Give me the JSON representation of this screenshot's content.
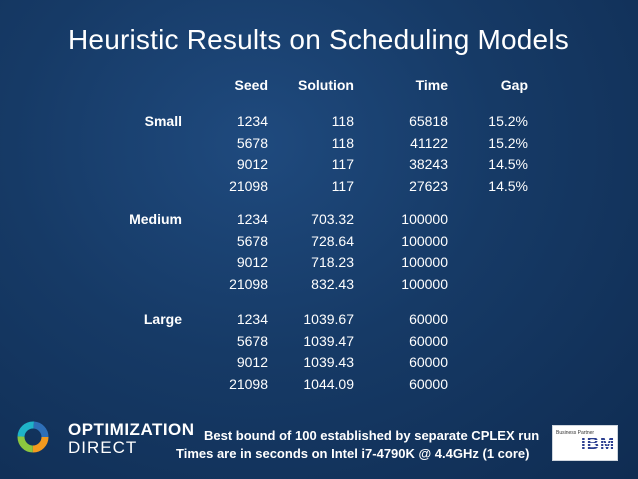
{
  "title": "Heuristic Results on Scheduling Models",
  "table": {
    "headers": [
      "Seed",
      "Solution",
      "Time",
      "Gap"
    ],
    "groups": [
      {
        "label": "Small",
        "rows": [
          {
            "seed": "1234",
            "solution": "118",
            "time": "65818",
            "gap": "15.2%"
          },
          {
            "seed": "5678",
            "solution": "118",
            "time": "41122",
            "gap": "15.2%"
          },
          {
            "seed": "9012",
            "solution": "117",
            "time": "38243",
            "gap": "14.5%"
          },
          {
            "seed": "21098",
            "solution": "117",
            "time": "27623",
            "gap": "14.5%"
          }
        ]
      },
      {
        "label": "Medium",
        "rows": [
          {
            "seed": "1234",
            "solution": "703.32",
            "time": "100000",
            "gap": ""
          },
          {
            "seed": "5678",
            "solution": "728.64",
            "time": "100000",
            "gap": ""
          },
          {
            "seed": "9012",
            "solution": "718.23",
            "time": "100000",
            "gap": ""
          },
          {
            "seed": "21098",
            "solution": "832.43",
            "time": "100000",
            "gap": ""
          }
        ]
      },
      {
        "label": "Large",
        "rows": [
          {
            "seed": "1234",
            "solution": "1039.67",
            "time": "60000",
            "gap": ""
          },
          {
            "seed": "5678",
            "solution": "1039.47",
            "time": "60000",
            "gap": ""
          },
          {
            "seed": "9012",
            "solution": "1039.43",
            "time": "60000",
            "gap": ""
          },
          {
            "seed": "21098",
            "solution": "1044.09",
            "time": "60000",
            "gap": ""
          }
        ]
      }
    ]
  },
  "footer": {
    "logo_line1": "OPTIMIZATION",
    "logo_line2": "DIRECT",
    "note1": "Best bound of 100 established by separate CPLEX run",
    "note2": "Times are in seconds on Intel i7-4790K @ 4.4GHz (1 core)",
    "partner_text": "Business Partner",
    "partner_mark": "IBM"
  },
  "colors": {
    "background": "#163a66",
    "text": "#ffffff",
    "logo_orange": "#f39a1e",
    "logo_green": "#8cc63f",
    "logo_teal": "#1fb3c8",
    "logo_blue": "#2e6fb7",
    "ibm_blue": "#2a3d8f"
  }
}
